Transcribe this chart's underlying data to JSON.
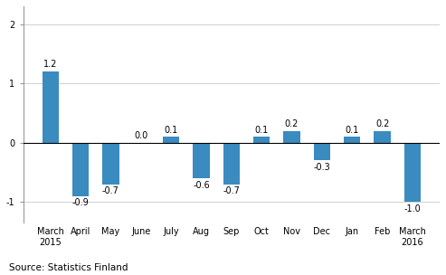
{
  "categories": [
    "March\n2015",
    "April",
    "May",
    "June",
    "July",
    "Aug",
    "Sep",
    "Oct",
    "Nov",
    "Dec",
    "Jan",
    "Feb",
    "March\n2016"
  ],
  "values": [
    1.2,
    -0.9,
    -0.7,
    0.0,
    0.1,
    -0.6,
    -0.7,
    0.1,
    0.2,
    -0.3,
    0.1,
    0.2,
    -1.0
  ],
  "bar_color": "#3a8bbf",
  "ylim": [
    -1.35,
    2.3
  ],
  "yticks": [
    -1,
    0,
    1,
    2
  ],
  "source_text": "Source: Statistics Finland",
  "label_fontsize": 7.0,
  "tick_fontsize": 7.0,
  "source_fontsize": 7.5,
  "bar_width": 0.55
}
